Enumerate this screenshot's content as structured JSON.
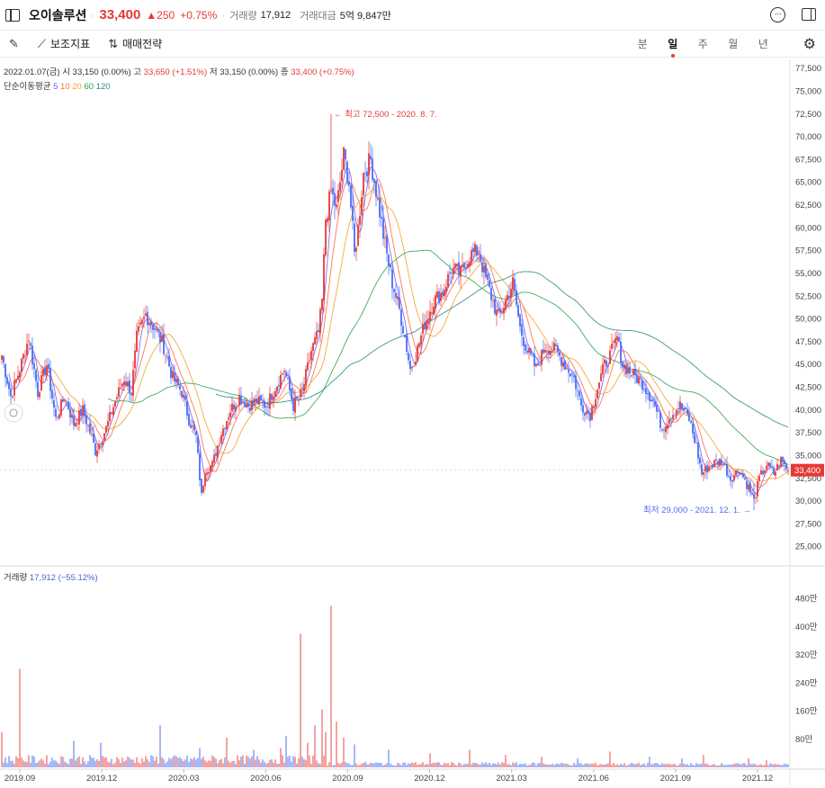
{
  "header": {
    "stock_name": "오이솔루션",
    "price": "33,400",
    "change": "▲250",
    "change_pct": "+0.75%",
    "volume_label": "거래량",
    "volume_value": "17,912",
    "amount_label": "거래대금",
    "amount_value": "5억 9,847만"
  },
  "toolbar": {
    "indicator_label": "보조지표",
    "trade_label": "매매전략",
    "periods": [
      "분",
      "일",
      "주",
      "월",
      "년"
    ],
    "active_period": "일"
  },
  "info": {
    "date": "2022.01.07(금)",
    "open_label": "시",
    "open": "33,150 (0.00%)",
    "high_label": "고",
    "high": "33,650 (+1.51%)",
    "low_label": "저",
    "low": "33,150 (0.00%)",
    "close_label": "종",
    "close": "33,400 (+0.75%)",
    "ma_label": "단순이동평균",
    "ma_periods": [
      "5",
      "10",
      "20",
      "60",
      "120"
    ]
  },
  "volume_info": {
    "label": "거래량",
    "value": "17,912 (−55.12%)"
  },
  "colors": {
    "up": "#e53935",
    "down": "#4a6cf7",
    "ma5": "#7a5cf0",
    "ma10": "#ff6b3d",
    "ma20": "#f2a12e",
    "ma60": "#2ea34d",
    "ma120": "#2a8a8a",
    "vol_up": "#f28b8b",
    "vol_down": "#8fa6f5"
  },
  "chart_data": {
    "type": "candlestick",
    "x_ticks": [
      "2019.09",
      "2019.12",
      "2020.03",
      "2020.06",
      "2020.09",
      "2020.12",
      "2021.03",
      "2021.06",
      "2021.09",
      "2021.12"
    ],
    "price_axis": {
      "ticks": [
        "25,000",
        "27,500",
        "30,000",
        "32,500",
        "35,000",
        "37,500",
        "40,000",
        "42,500",
        "45,000",
        "47,500",
        "50,000",
        "52,500",
        "55,000",
        "57,500",
        "60,000",
        "62,500",
        "65,000",
        "67,500",
        "70,000",
        "72,500",
        "75,000",
        "77,500"
      ],
      "ylim": [
        23000,
        78500
      ]
    },
    "volume_axis": {
      "ticks": [
        "80만",
        "160만",
        "240만",
        "320만",
        "400만",
        "480만"
      ],
      "ylim": [
        0,
        5200000
      ]
    },
    "current_price_label": "33,400",
    "annotations": {
      "high": "← 최고 72,500 - 2020. 8. 7.",
      "low": "최저 29,000 - 2021. 12. 1. →"
    },
    "close_path": [
      [
        0,
        46000
      ],
      [
        5,
        41500
      ],
      [
        10,
        44500
      ],
      [
        15,
        48000
      ],
      [
        20,
        42000
      ],
      [
        25,
        45000
      ],
      [
        30,
        39000
      ],
      [
        35,
        41500
      ],
      [
        40,
        38500
      ],
      [
        45,
        40000
      ],
      [
        50,
        37000
      ],
      [
        52,
        35500
      ],
      [
        58,
        38000
      ],
      [
        63,
        41000
      ],
      [
        68,
        43500
      ],
      [
        72,
        42000
      ],
      [
        75,
        48000
      ],
      [
        80,
        50500
      ],
      [
        85,
        49000
      ],
      [
        90,
        47000
      ],
      [
        95,
        43500
      ],
      [
        100,
        42000
      ],
      [
        104,
        39000
      ],
      [
        108,
        37000
      ],
      [
        111,
        30500
      ],
      [
        113,
        33500
      ],
      [
        117,
        34000
      ],
      [
        122,
        37500
      ],
      [
        127,
        40000
      ],
      [
        132,
        41500
      ],
      [
        137,
        40500
      ],
      [
        142,
        41000
      ],
      [
        147,
        40500
      ],
      [
        152,
        42500
      ],
      [
        157,
        44500
      ],
      [
        162,
        40500
      ],
      [
        167,
        42000
      ],
      [
        172,
        46500
      ],
      [
        176,
        48500
      ],
      [
        178,
        52000
      ],
      [
        180,
        61000
      ],
      [
        183,
        64000
      ],
      [
        186,
        62000
      ],
      [
        190,
        68000
      ],
      [
        193,
        65000
      ],
      [
        196,
        57000
      ],
      [
        198,
        60000
      ],
      [
        201,
        66000
      ],
      [
        205,
        67500
      ],
      [
        209,
        63000
      ],
      [
        213,
        58000
      ],
      [
        217,
        54000
      ],
      [
        221,
        51000
      ],
      [
        224,
        48000
      ],
      [
        227,
        44500
      ],
      [
        230,
        46000
      ],
      [
        235,
        49500
      ],
      [
        240,
        52000
      ],
      [
        245,
        53000
      ],
      [
        250,
        55500
      ],
      [
        255,
        55000
      ],
      [
        260,
        57000
      ],
      [
        265,
        57500
      ],
      [
        268,
        55000
      ],
      [
        272,
        52500
      ],
      [
        276,
        50000
      ],
      [
        280,
        52000
      ],
      [
        284,
        54000
      ],
      [
        288,
        49000
      ],
      [
        292,
        46500
      ],
      [
        297,
        44500
      ],
      [
        302,
        47000
      ],
      [
        308,
        46500
      ],
      [
        313,
        45000
      ],
      [
        318,
        43500
      ],
      [
        322,
        40500
      ],
      [
        327,
        39500
      ],
      [
        331,
        42500
      ],
      [
        335,
        45000
      ],
      [
        338,
        46000
      ],
      [
        342,
        48000
      ],
      [
        345,
        45000
      ],
      [
        350,
        44000
      ],
      [
        356,
        43000
      ],
      [
        362,
        41000
      ],
      [
        367,
        38000
      ],
      [
        372,
        39500
      ],
      [
        377,
        40500
      ],
      [
        382,
        39000
      ],
      [
        386,
        36000
      ],
      [
        389,
        33000
      ],
      [
        394,
        34000
      ],
      [
        400,
        34500
      ],
      [
        405,
        32500
      ],
      [
        410,
        33500
      ],
      [
        415,
        31500
      ],
      [
        418,
        30000
      ],
      [
        421,
        32500
      ],
      [
        425,
        34000
      ],
      [
        429,
        33000
      ],
      [
        433,
        34500
      ],
      [
        437,
        33400
      ]
    ],
    "volume_spikes": [
      [
        0,
        1000000
      ],
      [
        10,
        2800000
      ],
      [
        40,
        750000
      ],
      [
        55,
        700000
      ],
      [
        88,
        1200000
      ],
      [
        110,
        550000
      ],
      [
        125,
        850000
      ],
      [
        140,
        500000
      ],
      [
        155,
        550000
      ],
      [
        158,
        900000
      ],
      [
        166,
        3800000
      ],
      [
        170,
        700000
      ],
      [
        174,
        1200000
      ],
      [
        178,
        1650000
      ],
      [
        180,
        1000000
      ],
      [
        183,
        4600000
      ],
      [
        186,
        1300000
      ],
      [
        190,
        850000
      ],
      [
        196,
        650000
      ],
      [
        215,
        500000
      ],
      [
        238,
        400000
      ],
      [
        260,
        500000
      ],
      [
        280,
        350000
      ],
      [
        300,
        300000
      ],
      [
        320,
        250000
      ],
      [
        338,
        450000
      ],
      [
        360,
        300000
      ],
      [
        378,
        250000
      ],
      [
        390,
        350000
      ],
      [
        415,
        250000
      ],
      [
        425,
        200000
      ]
    ]
  }
}
